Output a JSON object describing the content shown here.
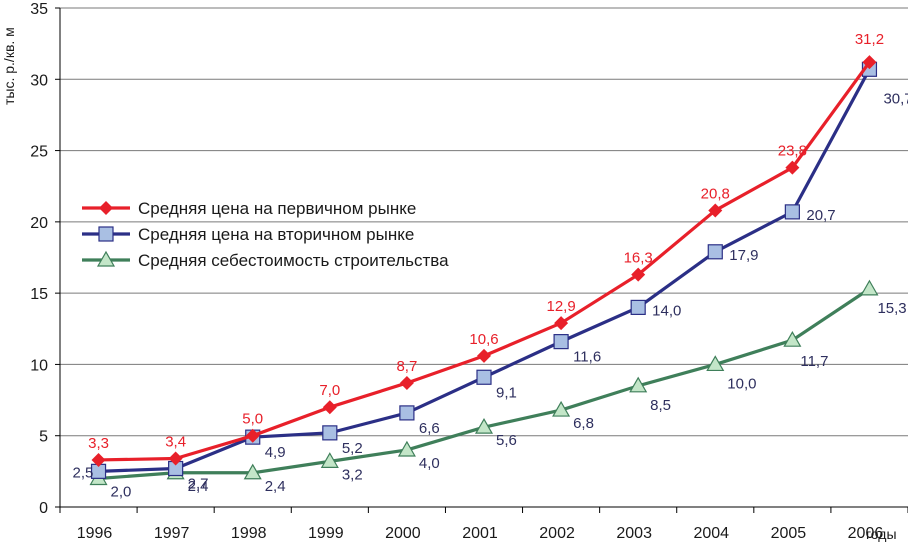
{
  "chart_data": {
    "type": "line",
    "title": "",
    "ylabel": "тыс. р./кв. м",
    "xlabel": "годы",
    "ylim": [
      0,
      35
    ],
    "yticks": [
      0,
      5,
      10,
      15,
      20,
      25,
      30,
      35
    ],
    "grid": "horizontal",
    "legend_position": "left-middle",
    "categories": [
      "1996",
      "1997",
      "1998",
      "1999",
      "2000",
      "2001",
      "2002",
      "2003",
      "2004",
      "2005",
      "2006"
    ],
    "series": [
      {
        "name": "Средняя цена на первичном рынке",
        "color": "#e8202a",
        "marker": "diamond",
        "values": [
          3.3,
          3.4,
          5.0,
          7.0,
          8.7,
          10.6,
          12.9,
          16.3,
          20.8,
          23.8,
          31.2
        ],
        "labels": [
          "3,3",
          "3,4",
          "5,0",
          "7,0",
          "8,7",
          "10,6",
          "12,9",
          "16,3",
          "20,8",
          "23,8",
          "31,2"
        ]
      },
      {
        "name": "Средняя цена на вторичном рынке",
        "color": "#2b2f86",
        "marker": "square",
        "values": [
          2.5,
          2.7,
          4.9,
          5.2,
          6.6,
          9.1,
          11.6,
          14.0,
          17.9,
          20.7,
          30.7
        ],
        "labels": [
          "2,5",
          "2,7",
          "4,9",
          "5,2",
          "6,6",
          "9,1",
          "11,6",
          "14,0",
          "17,9",
          "20,7",
          "30,7"
        ]
      },
      {
        "name": "Средняя себестоимость строительства",
        "color": "#3f7f5a",
        "marker": "triangle",
        "values": [
          2.0,
          2.4,
          2.4,
          3.2,
          4.0,
          5.6,
          6.8,
          8.5,
          10.0,
          11.7,
          15.3
        ],
        "labels": [
          "2,0",
          "2,4",
          "2,4",
          "3,2",
          "4,0",
          "5,6",
          "6,8",
          "8,5",
          "10,0",
          "11,7",
          "15,3"
        ]
      }
    ]
  },
  "marker_fills": {
    "square": "#a9bfe3",
    "triangle": "#c3e6c8"
  },
  "axis_color": "#000000",
  "grid_color": "#7a7a7a",
  "label_color_dark": "#2e2f5e"
}
